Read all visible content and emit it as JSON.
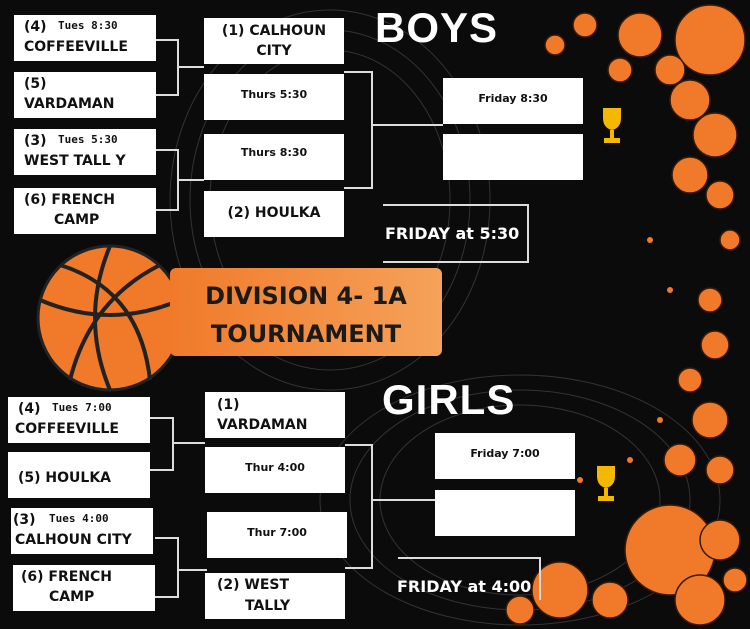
{
  "colors": {
    "background": "#0b0b0b",
    "accent": "#f07a2a",
    "box": "#ffffff"
  },
  "banner": {
    "line1": "DIVISION 4- 1A",
    "line2": "TOURNAMENT"
  },
  "boys": {
    "title": "BOYS",
    "first_round": [
      {
        "seed": "(4)",
        "time": "Tues 8:30",
        "team": "COFFEEVILLE"
      },
      {
        "seed": "(5)",
        "team": "VARDAMAN"
      },
      {
        "seed": "(3)",
        "time": "Tues 5:30",
        "team": "WEST TALL Y"
      },
      {
        "seed": "(6) FRENCH",
        "team": "CAMP"
      }
    ],
    "second_round": [
      {
        "line1": "(1) CALHOUN",
        "line2": "CITY"
      },
      {
        "line1": "Thurs 5:30"
      },
      {
        "line1": "Thurs 8:30"
      },
      {
        "line1": "(2)  HOULKA"
      }
    ],
    "final": {
      "slot1": "Friday 8:30",
      "slot2": ""
    },
    "consolation": "FRIDAY at 5:30",
    "trophy_icon": "trophy-icon"
  },
  "girls": {
    "title": "GIRLS",
    "first_round": [
      {
        "seed": "(4)",
        "time": "Tues 7:00",
        "team": "COFFEEVILLE"
      },
      {
        "seed": "(5)  HOULKA",
        "team": ""
      },
      {
        "seed": "(3)",
        "time": "Tues 4:00",
        "team": "CALHOUN CITY"
      },
      {
        "seed": "(6) FRENCH",
        "team": "CAMP"
      }
    ],
    "second_round": [
      {
        "line1": "(1)",
        "line2": "VARDAMAN"
      },
      {
        "line1": "Thur 4:00"
      },
      {
        "line1": "Thur 7:00"
      },
      {
        "line1": "(2)  WEST",
        "line2": "TALLY"
      }
    ],
    "final": {
      "slot1": "Friday 7:00",
      "slot2": ""
    },
    "consolation": "FRIDAY at 4:00",
    "trophy_icon": "trophy-icon"
  }
}
